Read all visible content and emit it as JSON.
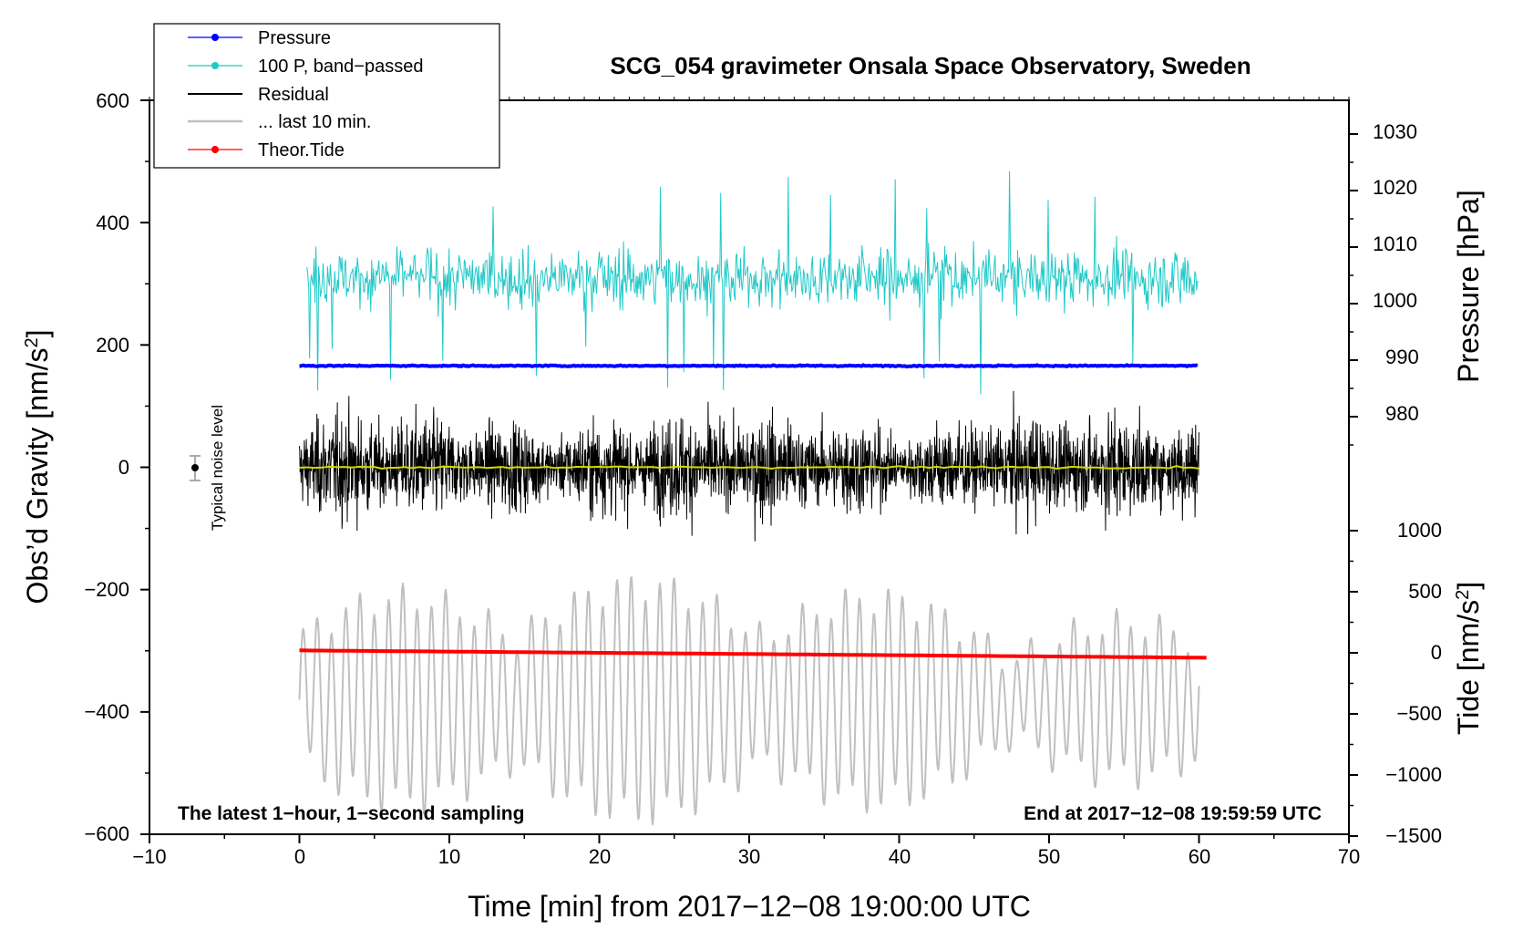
{
  "chart_data": {
    "type": "line",
    "title": "SCG_054 gravimeter Onsala Space Observatory, Sweden",
    "xlabel": "Time [min] from 2017−12−08 19:00:00 UTC",
    "ylabel_left": "Obs’d Gravity [nm/s",
    "ylabel_left_sup": "2",
    "ylabel_left_close": "]",
    "ylabel_right_pressure": "Pressure [hPa]",
    "ylabel_right_tide": "Tide [nm/s",
    "ylabel_right_tide_sup": "2",
    "ylabel_right_tide_close": "]",
    "xlim": [
      -10,
      70
    ],
    "ylim_left": [
      -600,
      600
    ],
    "x_ticks": [
      "−10",
      "0",
      "10",
      "20",
      "30",
      "40",
      "50",
      "60",
      "70"
    ],
    "y_ticks_left": [
      "600",
      "400",
      "200",
      "0",
      "−200",
      "−400",
      "−600"
    ],
    "pressure_ticks": [
      "1030",
      "1020",
      "1010",
      "1000",
      "990",
      "980"
    ],
    "tide_ticks": [
      "1000",
      "500",
      "0",
      "−500",
      "−1000",
      "−1500"
    ],
    "note_left": "The latest 1−hour, 1−second sampling",
    "note_right": "End at 2017−12−08 19:59:59 UTC",
    "noise_label": "Typical noise level",
    "legend": [
      {
        "label": "Pressure",
        "color": "#0000ff",
        "marker": "dot"
      },
      {
        "label": "100 P, band−passed",
        "color": "#20c8c8",
        "marker": "dot"
      },
      {
        "label": "Residual",
        "color": "#000000",
        "marker": "none"
      },
      {
        "label": "... last 10 min.",
        "color": "#c0c0c0",
        "marker": "none"
      },
      {
        "label": "Theor.Tide",
        "color": "#ff0000",
        "marker": "dot"
      }
    ],
    "series": [
      {
        "name": "Pressure",
        "color": "#0000ff",
        "axis": "pressure_hPa",
        "x_range": [
          0,
          60
        ],
        "value_approx": 989
      },
      {
        "name": "100 P, band-passed",
        "color": "#20c8c8",
        "axis": "gravity",
        "x_range": [
          0,
          60
        ],
        "center": 310,
        "amplitude_approx": 60,
        "peaks_approx": [
          490,
          450,
          420
        ]
      },
      {
        "name": "Residual",
        "color": "#000000",
        "axis": "gravity",
        "x_range": [
          0,
          60
        ],
        "center": 0,
        "amplitude_approx": 110,
        "peaks_approx": [
          190,
          -185
        ]
      },
      {
        "name": "Residual mean",
        "color": "#d8d800",
        "axis": "gravity",
        "x_range": [
          0,
          60
        ],
        "value_approx": 0
      },
      {
        "name": "... last 10 min.",
        "color": "#c0c0c0",
        "axis": "gravity",
        "x_range": [
          0,
          60
        ],
        "center": -380,
        "amplitude_approx": 150
      },
      {
        "name": "Theor.Tide",
        "color": "#ff0000",
        "axis": "tide",
        "x_range": [
          0,
          60.5
        ],
        "y_start": 20,
        "y_end": -40
      }
    ],
    "noise_level": {
      "x": -7,
      "y": 0,
      "err": 20
    }
  }
}
